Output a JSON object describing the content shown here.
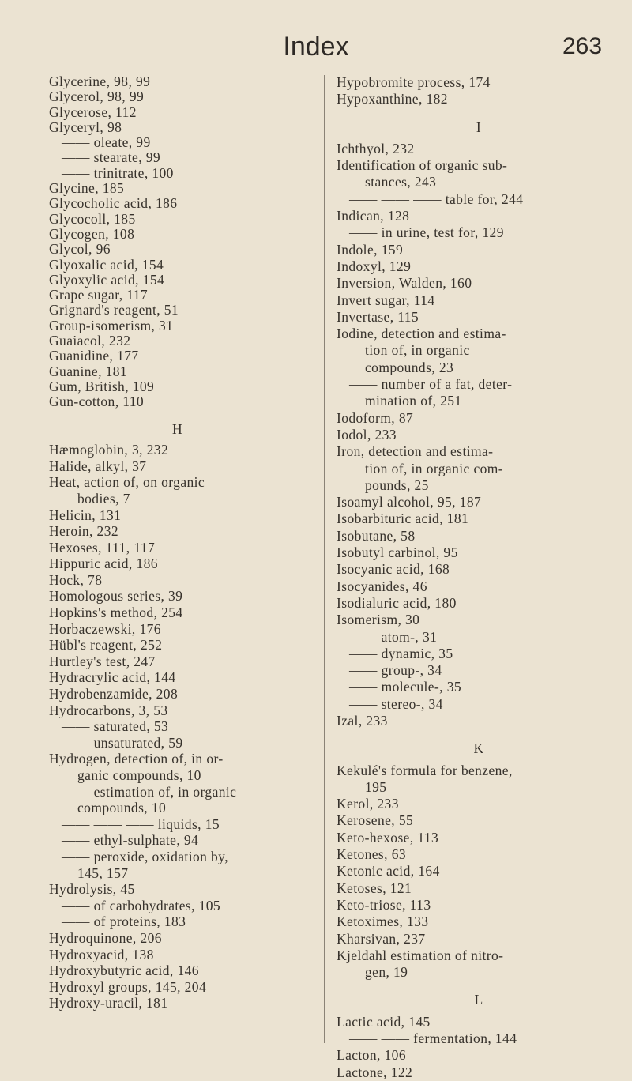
{
  "header": {
    "title": "Index",
    "page_number": "263"
  },
  "left_column": [
    {
      "t": "Glycerine, 98, 99",
      "k": "main"
    },
    {
      "t": "Glycerol, 98, 99",
      "k": "main"
    },
    {
      "t": "Glycerose, 112",
      "k": "main"
    },
    {
      "t": "Glyceryl, 98",
      "k": "main"
    },
    {
      "t": "—— oleate, 99",
      "k": "sub"
    },
    {
      "t": "—— stearate, 99",
      "k": "sub"
    },
    {
      "t": "—— trinitrate, 100",
      "k": "sub"
    },
    {
      "t": "Glycine, 185",
      "k": "main"
    },
    {
      "t": "Glycocholic acid, 186",
      "k": "main"
    },
    {
      "t": "Glycocoll, 185",
      "k": "main"
    },
    {
      "t": "Glycogen, 108",
      "k": "main"
    },
    {
      "t": "Glycol, 96",
      "k": "main"
    },
    {
      "t": "Glyoxalic acid, 154",
      "k": "main"
    },
    {
      "t": "Glyoxylic acid, 154",
      "k": "main"
    },
    {
      "t": "Grape sugar, 117",
      "k": "main"
    },
    {
      "t": "Grignard's reagent, 51",
      "k": "main"
    },
    {
      "t": "Group-isomerism, 31",
      "k": "main"
    },
    {
      "t": "Guaiacol, 232",
      "k": "main"
    },
    {
      "t": "Guanidine, 177",
      "k": "main"
    },
    {
      "t": "Guanine, 181",
      "k": "main"
    },
    {
      "t": "Gum, British, 109",
      "k": "main"
    },
    {
      "t": "Gun-cotton, 110",
      "k": "main"
    },
    {
      "t": "H",
      "k": "letter"
    },
    {
      "t": "Hæmoglobin, 3, 232",
      "k": "main"
    },
    {
      "t": "Halide, alkyl, 37",
      "k": "main"
    },
    {
      "t": "Heat, action of, on organic",
      "k": "main"
    },
    {
      "t": "bodies, 7",
      "k": "cont"
    },
    {
      "t": "Helicin, 131",
      "k": "main"
    },
    {
      "t": "Heroin, 232",
      "k": "main"
    },
    {
      "t": "Hexoses, 111, 117",
      "k": "main"
    },
    {
      "t": "Hippuric acid, 186",
      "k": "main"
    },
    {
      "t": "Hock, 78",
      "k": "main"
    },
    {
      "t": "Homologous series, 39",
      "k": "main"
    },
    {
      "t": "Hopkins's method, 254",
      "k": "main"
    },
    {
      "t": "Horbaczewski, 176",
      "k": "main"
    },
    {
      "t": "Hübl's reagent, 252",
      "k": "main"
    },
    {
      "t": "Hurtley's test, 247",
      "k": "main"
    },
    {
      "t": "Hydracrylic acid, 144",
      "k": "main"
    },
    {
      "t": "Hydrobenzamide, 208",
      "k": "main"
    },
    {
      "t": "Hydrocarbons, 3, 53",
      "k": "main"
    },
    {
      "t": "—— saturated, 53",
      "k": "sub"
    },
    {
      "t": "—— unsaturated, 59",
      "k": "sub"
    },
    {
      "t": "Hydrogen, detection of, in or-",
      "k": "main"
    },
    {
      "t": "ganic compounds, 10",
      "k": "cont"
    },
    {
      "t": "—— estimation of, in organic",
      "k": "sub"
    },
    {
      "t": "compounds, 10",
      "k": "cont"
    },
    {
      "t": "—— —— —— liquids, 15",
      "k": "sub"
    },
    {
      "t": "—— ethyl-sulphate, 94",
      "k": "sub"
    },
    {
      "t": "—— peroxide, oxidation by,",
      "k": "sub"
    },
    {
      "t": "145, 157",
      "k": "cont"
    },
    {
      "t": "Hydrolysis, 45",
      "k": "main"
    },
    {
      "t": "—— of carbohydrates, 105",
      "k": "sub"
    },
    {
      "t": "—— of proteins, 183",
      "k": "sub"
    },
    {
      "t": "Hydroquinone, 206",
      "k": "main"
    },
    {
      "t": "Hydroxyacid, 138",
      "k": "main"
    },
    {
      "t": "Hydroxybutyric acid, 146",
      "k": "main"
    },
    {
      "t": "Hydroxyl groups, 145, 204",
      "k": "main"
    },
    {
      "t": "Hydroxy-uracil, 181",
      "k": "main"
    }
  ],
  "right_column": [
    {
      "t": "Hypobromite process, 174",
      "k": "main"
    },
    {
      "t": "Hypoxanthine, 182",
      "k": "main"
    },
    {
      "t": "I",
      "k": "letter"
    },
    {
      "t": "Ichthyol, 232",
      "k": "main"
    },
    {
      "t": "Identification of organic sub-",
      "k": "main"
    },
    {
      "t": "stances, 243",
      "k": "cont"
    },
    {
      "t": "—— —— —— table for, 244",
      "k": "sub"
    },
    {
      "t": "Indican, 128",
      "k": "main"
    },
    {
      "t": "—— in urine, test for, 129",
      "k": "sub"
    },
    {
      "t": "Indole, 159",
      "k": "main"
    },
    {
      "t": "Indoxyl, 129",
      "k": "main"
    },
    {
      "t": "Inversion, Walden, 160",
      "k": "main"
    },
    {
      "t": "Invert sugar, 114",
      "k": "main"
    },
    {
      "t": "Invertase, 115",
      "k": "main"
    },
    {
      "t": "Iodine, detection and estima-",
      "k": "main"
    },
    {
      "t": "tion of, in organic",
      "k": "cont"
    },
    {
      "t": "compounds, 23",
      "k": "cont"
    },
    {
      "t": "—— number of a fat, deter-",
      "k": "sub"
    },
    {
      "t": "mination of, 251",
      "k": "cont"
    },
    {
      "t": "Iodoform, 87",
      "k": "main"
    },
    {
      "t": "Iodol, 233",
      "k": "main"
    },
    {
      "t": "Iron, detection and estima-",
      "k": "main"
    },
    {
      "t": "tion of, in organic com-",
      "k": "cont"
    },
    {
      "t": "pounds, 25",
      "k": "cont"
    },
    {
      "t": "Isoamyl alcohol, 95, 187",
      "k": "main"
    },
    {
      "t": "Isobarbituric acid, 181",
      "k": "main"
    },
    {
      "t": "Isobutane, 58",
      "k": "main"
    },
    {
      "t": "Isobutyl carbinol, 95",
      "k": "main"
    },
    {
      "t": "Isocyanic acid, 168",
      "k": "main"
    },
    {
      "t": "Isocyanides, 46",
      "k": "main"
    },
    {
      "t": "Isodialuric acid, 180",
      "k": "main"
    },
    {
      "t": "Isomerism, 30",
      "k": "main"
    },
    {
      "t": "—— atom-, 31",
      "k": "sub"
    },
    {
      "t": "—— dynamic, 35",
      "k": "sub"
    },
    {
      "t": "—— group-, 34",
      "k": "sub"
    },
    {
      "t": "—— molecule-, 35",
      "k": "sub"
    },
    {
      "t": "—— stereo-, 34",
      "k": "sub"
    },
    {
      "t": "Izal, 233",
      "k": "main"
    },
    {
      "t": "K",
      "k": "letter"
    },
    {
      "t": "Kekulé's formula for benzene,",
      "k": "main"
    },
    {
      "t": "195",
      "k": "cont"
    },
    {
      "t": "Kerol, 233",
      "k": "main"
    },
    {
      "t": "Kerosene, 55",
      "k": "main"
    },
    {
      "t": "Keto-hexose, 113",
      "k": "main"
    },
    {
      "t": "Ketones, 63",
      "k": "main"
    },
    {
      "t": "Ketonic acid, 164",
      "k": "main"
    },
    {
      "t": "Ketoses, 121",
      "k": "main"
    },
    {
      "t": "Keto-triose, 113",
      "k": "main"
    },
    {
      "t": "Ketoximes, 133",
      "k": "main"
    },
    {
      "t": "Kharsivan, 237",
      "k": "main"
    },
    {
      "t": "Kjeldahl estimation of nitro-",
      "k": "main"
    },
    {
      "t": "gen, 19",
      "k": "cont"
    },
    {
      "t": "L",
      "k": "letter"
    },
    {
      "t": "Lactic acid, 145",
      "k": "main"
    },
    {
      "t": "—— —— fermentation, 144",
      "k": "sub"
    },
    {
      "t": "Lacton, 106",
      "k": "main"
    },
    {
      "t": "Lactone, 122",
      "k": "main"
    }
  ]
}
